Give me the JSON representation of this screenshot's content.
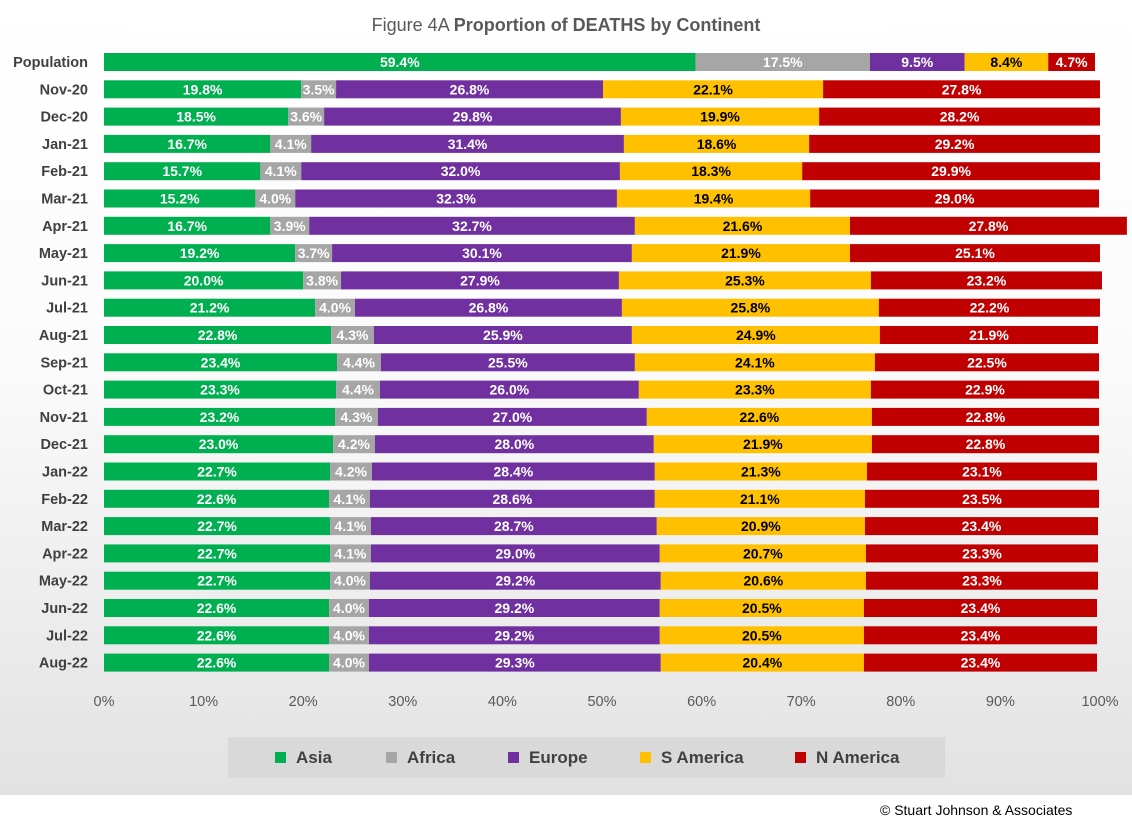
{
  "chart_data": {
    "type": "bar",
    "orientation": "horizontal",
    "stacked": true,
    "normalized": true,
    "title_prefix": "Figure  4A",
    "title": "Proportion of DEATHS by Continent",
    "categories": [
      "Population",
      "Nov-20",
      "Dec-20",
      "Jan-21",
      "Feb-21",
      "Mar-21",
      "Apr-21",
      "May-21",
      "Jun-21",
      "Jul-21",
      "Aug-21",
      "Sep-21",
      "Oct-21",
      "Nov-21",
      "Dec-21",
      "Jan-22",
      "Feb-22",
      "Mar-22",
      "Apr-22",
      "May-22",
      "Jun-22",
      "Jul-22",
      "Aug-22"
    ],
    "series": [
      {
        "name": "Asia",
        "color": "#00b050",
        "label_color": "#ffffff",
        "values": [
          59.4,
          19.8,
          18.5,
          16.7,
          15.7,
          15.2,
          16.7,
          19.2,
          20.0,
          21.2,
          22.8,
          23.4,
          23.3,
          23.2,
          23.0,
          22.7,
          22.6,
          22.7,
          22.7,
          22.7,
          22.6,
          22.6,
          22.6
        ]
      },
      {
        "name": "Africa",
        "color": "#a6a6a6",
        "label_color": "#ffffff",
        "values": [
          17.5,
          3.5,
          3.6,
          4.1,
          4.1,
          4.0,
          3.9,
          3.7,
          3.8,
          4.0,
          4.3,
          4.4,
          4.4,
          4.3,
          4.2,
          4.2,
          4.1,
          4.1,
          4.1,
          4.0,
          4.0,
          4.0,
          4.0
        ]
      },
      {
        "name": "Europe",
        "color": "#7030a0",
        "label_color": "#ffffff",
        "values": [
          9.5,
          26.8,
          29.8,
          31.4,
          32.0,
          32.3,
          32.7,
          30.1,
          27.9,
          26.8,
          25.9,
          25.5,
          26.0,
          27.0,
          28.0,
          28.4,
          28.6,
          28.7,
          29.0,
          29.2,
          29.2,
          29.2,
          29.3
        ]
      },
      {
        "name": "S America",
        "color": "#ffc000",
        "label_color": "#000000",
        "values": [
          8.4,
          22.1,
          19.9,
          18.6,
          18.3,
          19.4,
          21.6,
          21.9,
          25.3,
          25.8,
          24.9,
          24.1,
          23.3,
          22.6,
          21.9,
          21.3,
          21.1,
          20.9,
          20.7,
          20.6,
          20.5,
          20.5,
          20.4
        ]
      },
      {
        "name": "N America",
        "color": "#c00000",
        "label_color": "#ffffff",
        "values": [
          4.7,
          27.8,
          28.2,
          29.2,
          29.9,
          29.0,
          27.8,
          25.1,
          23.2,
          22.2,
          21.9,
          22.5,
          22.9,
          22.8,
          22.8,
          23.1,
          23.5,
          23.4,
          23.3,
          23.3,
          23.4,
          23.4,
          23.4
        ]
      }
    ],
    "xticks": [
      "0%",
      "10%",
      "20%",
      "30%",
      "40%",
      "50%",
      "60%",
      "70%",
      "80%",
      "90%",
      "100%"
    ],
    "xlim": [
      0,
      100
    ],
    "grid": false,
    "legend_position": "bottom",
    "data_label_format": "percent_1dp"
  },
  "footer": {
    "copyright": "© Stuart Johnson & Associates"
  }
}
